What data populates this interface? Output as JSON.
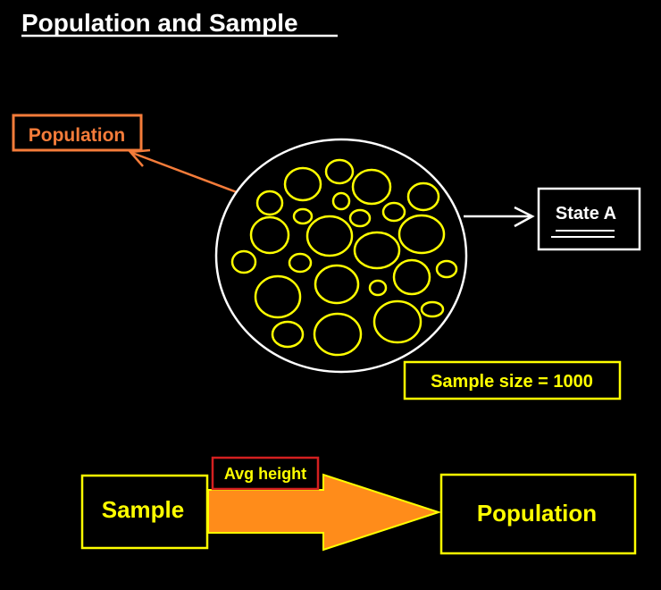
{
  "title": "Population and Sample",
  "colors": {
    "background": "#000000",
    "title": "#FFFFFF",
    "orange": "#F57C3A",
    "yellow": "#FFFF00",
    "white": "#FFFFFF",
    "arrow_fill": "#FF8C1A",
    "avg_border": "#D42020"
  },
  "population_label": "Population",
  "state_label": "State A",
  "sample_size_label": "Sample size = 1000",
  "flow": {
    "sample_label": "Sample",
    "arrow_label": "Avg height",
    "population_label": "Population"
  }
}
